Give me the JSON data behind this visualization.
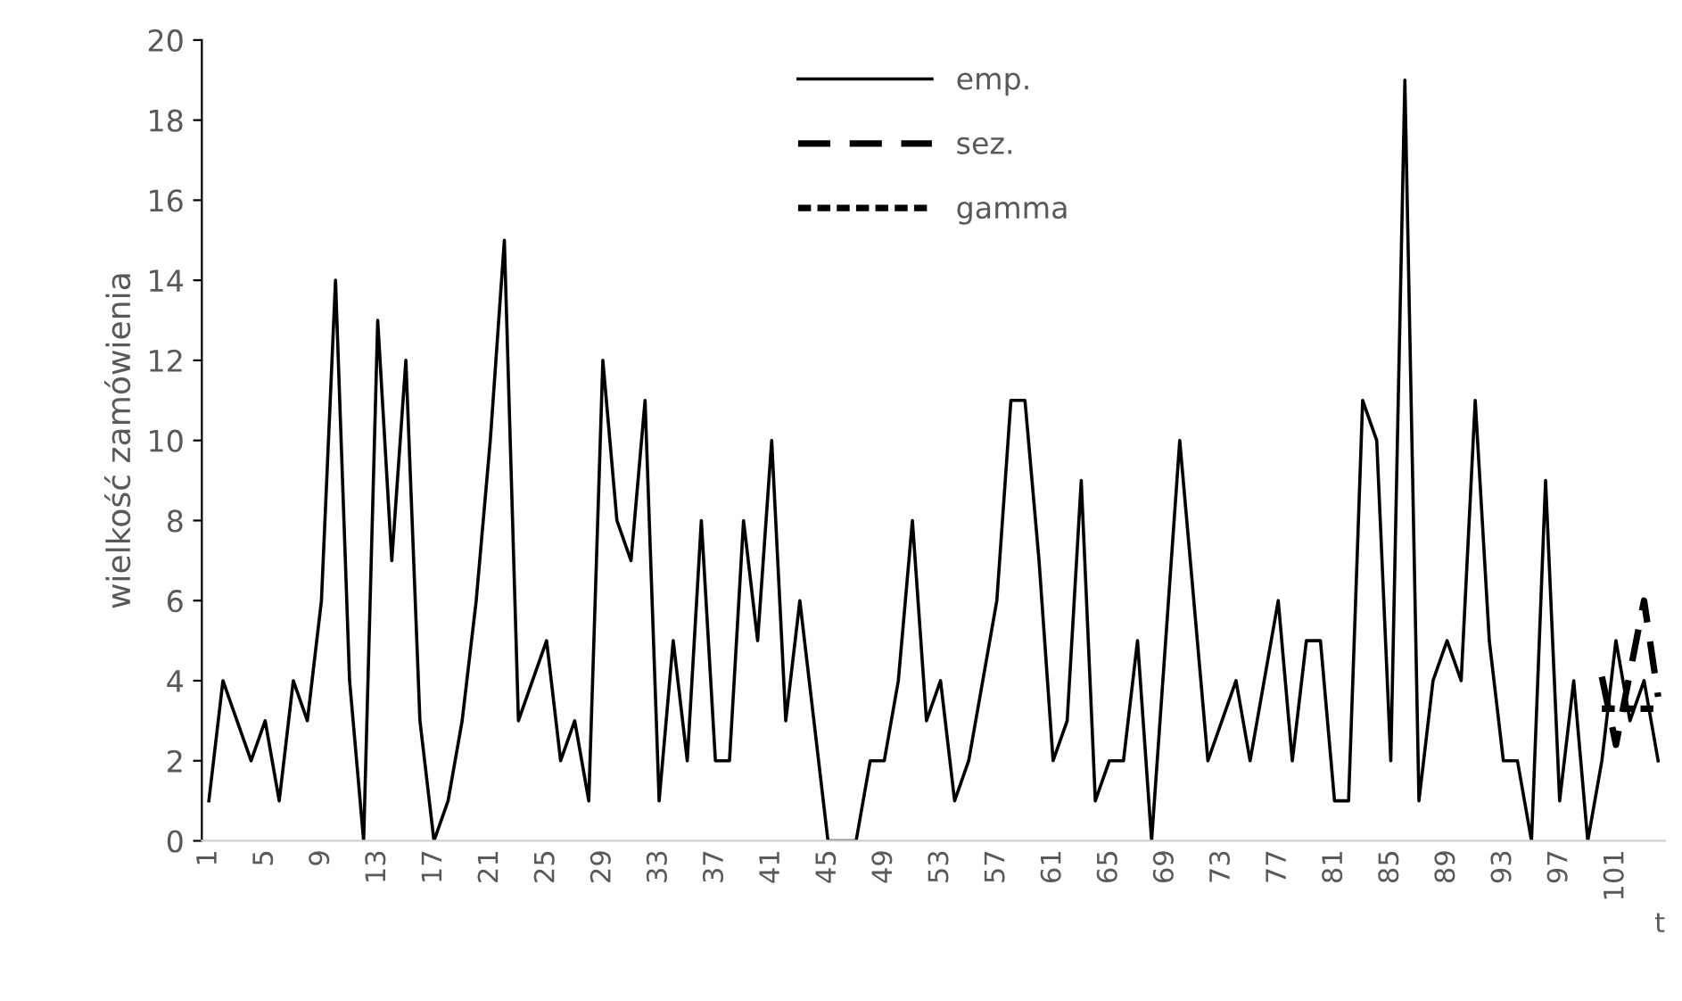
{
  "chart_data": {
    "type": "line",
    "ylabel": "wielkość zamówienia",
    "xlabel": "t",
    "categories": [
      "1",
      null,
      null,
      null,
      "5",
      null,
      null,
      null,
      "9",
      null,
      null,
      null,
      "13",
      null,
      null,
      null,
      "17",
      null,
      null,
      null,
      "21",
      null,
      null,
      null,
      "25",
      null,
      null,
      null,
      "29",
      null,
      null,
      null,
      "33",
      null,
      null,
      null,
      "37",
      null,
      null,
      null,
      "41",
      null,
      null,
      null,
      "45",
      null,
      null,
      null,
      "49",
      null,
      null,
      null,
      "53",
      null,
      null,
      null,
      "57",
      null,
      null,
      null,
      "61",
      null,
      null,
      null,
      "65",
      null,
      null,
      null,
      "69",
      null,
      null,
      null,
      "73",
      null,
      null,
      null,
      "77",
      null,
      null,
      null,
      "81",
      null,
      null,
      null,
      "85",
      null,
      null,
      null,
      "89",
      null,
      null,
      null,
      "93",
      null,
      null,
      null,
      "97",
      null,
      null,
      null,
      "101",
      null,
      null,
      null
    ],
    "series": [
      {
        "name": "emp.",
        "color": "#000000",
        "line_style": "solid",
        "values": [
          1,
          4,
          3,
          2,
          3,
          1,
          4,
          3,
          6,
          14,
          4,
          0,
          13,
          7,
          12,
          3,
          0,
          1,
          3,
          6,
          10,
          15,
          3,
          4,
          5,
          2,
          3,
          1,
          12,
          8,
          7,
          11,
          1,
          5,
          2,
          8,
          2,
          2,
          8,
          5,
          10,
          3,
          6,
          3,
          0,
          0,
          0,
          2,
          2,
          4,
          8,
          3,
          4,
          1,
          2,
          4,
          6,
          11,
          11,
          7,
          2,
          3,
          9,
          1,
          2,
          2,
          5,
          0,
          5,
          10,
          6,
          2,
          3,
          4,
          2,
          4,
          6,
          2,
          5,
          5,
          1,
          1,
          11,
          10,
          2,
          19,
          1,
          4,
          5,
          4,
          11,
          5,
          2,
          2,
          0,
          9,
          1,
          4,
          0,
          2,
          5,
          3,
          4,
          2
        ]
      },
      {
        "name": "sez.",
        "color": "#000000",
        "line_style": "dashed",
        "values": [
          null,
          null,
          null,
          null,
          null,
          null,
          null,
          null,
          null,
          null,
          null,
          null,
          null,
          null,
          null,
          null,
          null,
          null,
          null,
          null,
          null,
          null,
          null,
          null,
          null,
          null,
          null,
          null,
          null,
          null,
          null,
          null,
          null,
          null,
          null,
          null,
          null,
          null,
          null,
          null,
          null,
          null,
          null,
          null,
          null,
          null,
          null,
          null,
          null,
          null,
          null,
          null,
          null,
          null,
          null,
          null,
          null,
          null,
          null,
          null,
          null,
          null,
          null,
          null,
          null,
          null,
          null,
          null,
          null,
          null,
          null,
          null,
          null,
          null,
          null,
          null,
          null,
          null,
          null,
          null,
          null,
          null,
          null,
          null,
          null,
          null,
          null,
          null,
          null,
          null,
          null,
          null,
          null,
          null,
          null,
          null,
          null,
          null,
          null,
          4.1,
          2.4,
          4.2,
          6.0,
          3.6
        ]
      },
      {
        "name": "gamma",
        "color": "#000000",
        "line_style": "dotted",
        "values": [
          null,
          null,
          null,
          null,
          null,
          null,
          null,
          null,
          null,
          null,
          null,
          null,
          null,
          null,
          null,
          null,
          null,
          null,
          null,
          null,
          null,
          null,
          null,
          null,
          null,
          null,
          null,
          null,
          null,
          null,
          null,
          null,
          null,
          null,
          null,
          null,
          null,
          null,
          null,
          null,
          null,
          null,
          null,
          null,
          null,
          null,
          null,
          null,
          null,
          null,
          null,
          null,
          null,
          null,
          null,
          null,
          null,
          null,
          null,
          null,
          null,
          null,
          null,
          null,
          null,
          null,
          null,
          null,
          null,
          null,
          null,
          null,
          null,
          null,
          null,
          null,
          null,
          null,
          null,
          null,
          null,
          null,
          null,
          null,
          null,
          null,
          null,
          null,
          null,
          null,
          null,
          null,
          null,
          null,
          null,
          null,
          null,
          null,
          null,
          3.3,
          3.3,
          3.3,
          3.3,
          3.3
        ]
      }
    ],
    "ylim": [
      0,
      20
    ],
    "yticks": [
      0,
      2,
      4,
      6,
      8,
      10,
      12,
      14,
      16,
      18,
      20
    ],
    "grid": false,
    "legend": "top"
  }
}
